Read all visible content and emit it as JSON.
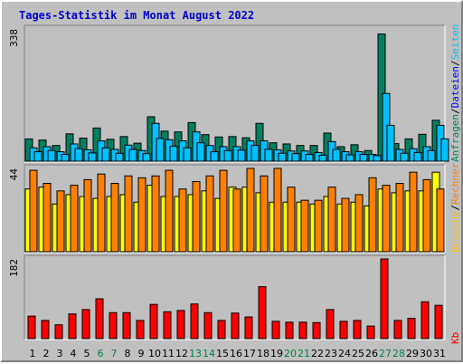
{
  "title": "Tages-Statistik im Monat August 2022",
  "colors": {
    "background": "#c0c0c0",
    "plot": "#c0c0c0",
    "title": "#0000cc",
    "anfragen": "#008060",
    "dateien": "#00c0ff",
    "seiten": "#00c0ff",
    "besuche": "#ffff00",
    "rechner": "#ff8000",
    "kb": "#ff0000",
    "weekend_label": "#008040",
    "weekday_label": "#000000",
    "separator_text": "#000000"
  },
  "chart_data": [
    {
      "type": "bar",
      "name": "anfragen-dateien",
      "categories": [
        "1",
        "2",
        "3",
        "4",
        "5",
        "6",
        "7",
        "8",
        "9",
        "10",
        "11",
        "12",
        "13",
        "14",
        "15",
        "16",
        "17",
        "18",
        "19",
        "20",
        "21",
        "22",
        "23",
        "24",
        "25",
        "26",
        "27",
        "28",
        "29",
        "30",
        "31"
      ],
      "weekend_days": [
        "6",
        "7",
        "13",
        "14",
        "20",
        "21",
        "27",
        "28"
      ],
      "ymax_label": "338",
      "ylim": [
        0,
        338
      ],
      "right_labels": [
        {
          "text": "Anfragen",
          "color": "#008060"
        },
        {
          "text": "/",
          "color": "#000000"
        },
        {
          "text": "Dateien",
          "color": "#0000ff"
        },
        {
          "text": "/",
          "color": "#000000"
        },
        {
          "text": "Seiten",
          "color": "#00c0ff"
        }
      ],
      "series": [
        {
          "name": "Anfragen",
          "color": "#008060",
          "values": [
            55,
            52,
            38,
            68,
            57,
            83,
            54,
            61,
            44,
            112,
            75,
            73,
            97,
            66,
            60,
            61,
            58,
            95,
            45,
            42,
            38,
            38,
            70,
            35,
            40,
            25,
            325,
            43,
            55,
            67,
            103
          ]
        },
        {
          "name": "Dateien",
          "color": "#00c0ff",
          "values": [
            32,
            35,
            22,
            42,
            27,
            50,
            28,
            39,
            25,
            95,
            53,
            50,
            73,
            38,
            35,
            35,
            50,
            50,
            27,
            24,
            24,
            20,
            48,
            22,
            22,
            15,
            172,
            28,
            30,
            35,
            90
          ]
        },
        {
          "name": "Seiten",
          "color": "#00c0ff",
          "values": [
            22,
            25,
            15,
            30,
            19,
            32,
            18,
            28,
            17,
            56,
            36,
            32,
            45,
            22,
            25,
            26,
            38,
            28,
            18,
            17,
            15,
            13,
            28,
            14,
            15,
            12,
            90,
            18,
            20,
            25,
            55
          ]
        }
      ]
    },
    {
      "type": "bar",
      "name": "rechner-besuche",
      "ymax_label": "44",
      "ylim": [
        0,
        44
      ],
      "right_labels": [
        {
          "text": "Besuche",
          "color": "#ffc000"
        },
        {
          "text": "/",
          "color": "#000000"
        },
        {
          "text": "Rechner",
          "color": "#ff8000"
        }
      ],
      "series": [
        {
          "name": "Besuche",
          "color": "#ffff00",
          "values": [
            33,
            34,
            25,
            30,
            29,
            28,
            29,
            30,
            26,
            35,
            29,
            29,
            30,
            32,
            28,
            34,
            34,
            31,
            26,
            26,
            26,
            25,
            29,
            25,
            26,
            24,
            33,
            31,
            32,
            32,
            42
          ]
        },
        {
          "name": "Rechner",
          "color": "#ff8000",
          "values": [
            43,
            36,
            32,
            35,
            38,
            41,
            36,
            40,
            39,
            40,
            43,
            33,
            37,
            40,
            43,
            33,
            44,
            40,
            44,
            34,
            27,
            27,
            34,
            28,
            30,
            39,
            35,
            36,
            42,
            38,
            33
          ]
        }
      ]
    },
    {
      "type": "bar",
      "name": "kb",
      "ymax_label": "182",
      "ylim": [
        0,
        182
      ],
      "right_labels": [
        {
          "text": "Kb",
          "color": "#ff0000"
        }
      ],
      "series": [
        {
          "name": "Kb",
          "color": "#ff0000",
          "values": [
            50,
            40,
            30,
            55,
            65,
            90,
            58,
            58,
            40,
            77,
            60,
            63,
            78,
            58,
            40,
            57,
            48,
            118,
            38,
            36,
            36,
            35,
            65,
            38,
            40,
            27,
            182,
            40,
            45,
            83,
            75
          ]
        }
      ]
    }
  ]
}
